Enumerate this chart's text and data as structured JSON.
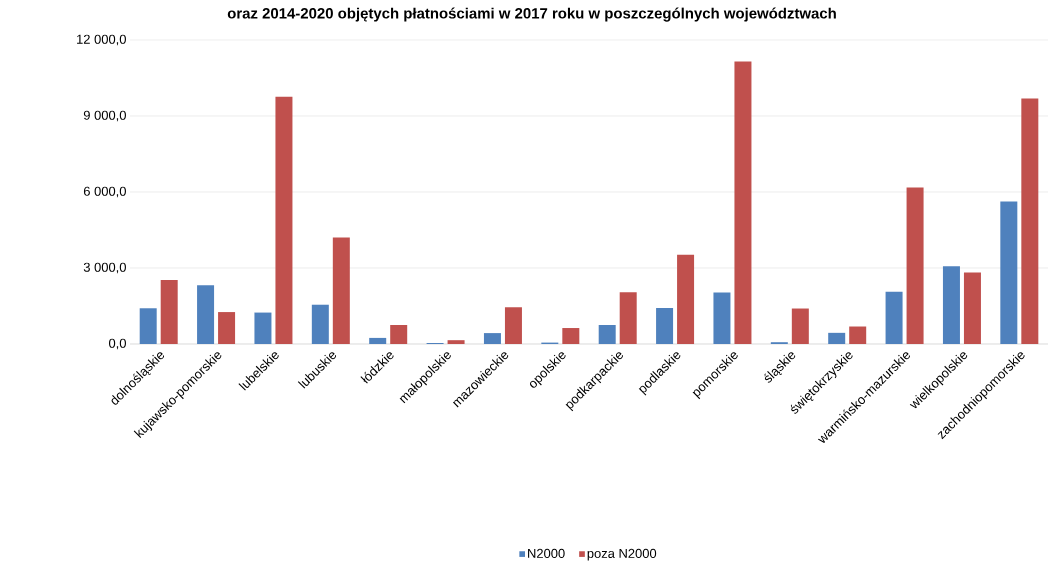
{
  "chart_data": {
    "type": "bar",
    "title": "oraz 2014-2020 objętych płatnościami w 2017 roku w poszczególnych województwach",
    "categories": [
      "dolnośląskie",
      "kujawsko-pomorskie",
      "lubelskie",
      "lubuskie",
      "łódzkie",
      "małopolskie",
      "mazowieckie",
      "opolskie",
      "podkarpackie",
      "podlaskie",
      "pomorskie",
      "śląskie",
      "świętokrzyskie",
      "warmińsko-mazurskie",
      "wielkopolskie",
      "zachodniopomorskie"
    ],
    "series": [
      {
        "name": "N2000",
        "color": "#4f81bd",
        "values": [
          1410,
          2320,
          1240,
          1550,
          240,
          40,
          430,
          55,
          750,
          1420,
          2030,
          70,
          440,
          2060,
          3070,
          5620
        ]
      },
      {
        "name": "poza N2000",
        "color": "#c0504d",
        "values": [
          2530,
          1260,
          9760,
          4200,
          750,
          150,
          1450,
          630,
          2040,
          3520,
          11150,
          1400,
          690,
          6180,
          2820,
          9690
        ]
      }
    ],
    "ylim": [
      0,
      12000
    ],
    "yticks": [
      {
        "value": 0,
        "label": "0,0"
      },
      {
        "value": 3000,
        "label": "3 000,0"
      },
      {
        "value": 6000,
        "label": "6 000,0"
      },
      {
        "value": 9000,
        "label": "9 000,0"
      },
      {
        "value": 12000,
        "label": "12 000,0"
      }
    ],
    "grid": "y",
    "legend": "bottom"
  }
}
